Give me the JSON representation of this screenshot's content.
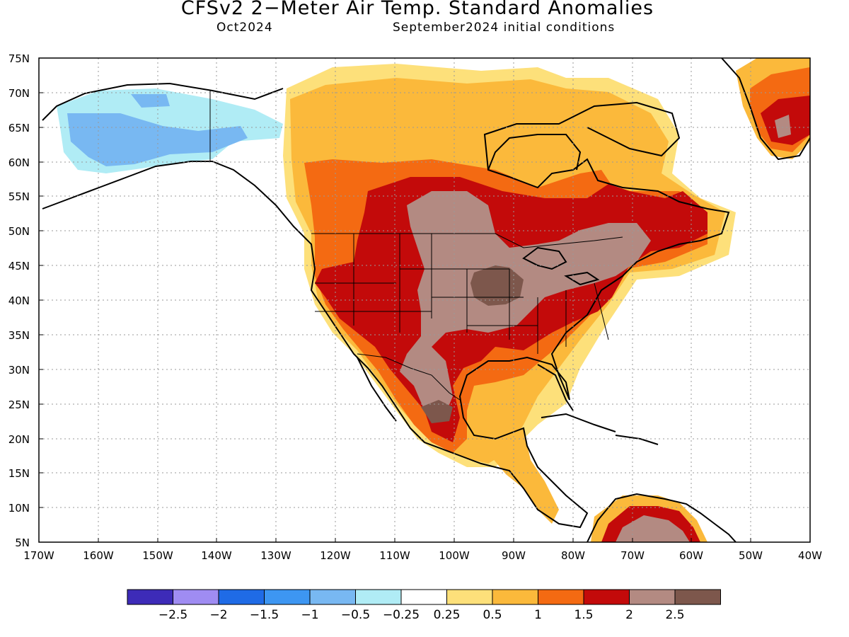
{
  "header": {
    "title": "CFSv2 2−Meter Air Temp. Standard Anomalies",
    "month": "Oct2024",
    "conditions": "September2024 initial conditions"
  },
  "axes": {
    "lat_labels": [
      "75N",
      "70N",
      "65N",
      "60N",
      "55N",
      "50N",
      "45N",
      "40N",
      "35N",
      "30N",
      "25N",
      "20N",
      "15N",
      "10N",
      "5N"
    ],
    "lon_labels": [
      "170W",
      "160W",
      "150W",
      "140W",
      "130W",
      "120W",
      "110W",
      "100W",
      "90W",
      "80W",
      "70W",
      "60W",
      "50W",
      "40W"
    ]
  },
  "colorbar": {
    "colors": [
      "#3d2bb8",
      "#9f8cf2",
      "#1f6be6",
      "#3d96f2",
      "#78b8f2",
      "#b0ecf5",
      "#ffffff",
      "#fde07a",
      "#fbb93b",
      "#f46a12",
      "#c30a0a",
      "#b38a82",
      "#7d574c"
    ],
    "labels": [
      "−2.5",
      "−2",
      "−1.5",
      "−1",
      "−0.5",
      "−0.25",
      "0.25",
      "0.5",
      "1",
      "1.5",
      "2",
      "2.5"
    ]
  },
  "map": {
    "region": "North America",
    "dominant_anomaly": "warm",
    "hotspots": [
      "central US",
      "Mexico",
      "northeast US",
      "Greenland"
    ],
    "cool_region": "Alaska"
  }
}
